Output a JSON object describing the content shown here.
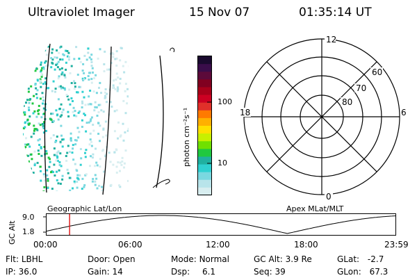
{
  "header": {
    "instrument": "Ultraviolet Imager",
    "date": "15 Nov 07",
    "time": "01:35:14 UT"
  },
  "colorbar": {
    "label": "photon cm⁻²s⁻¹",
    "ticks": [
      "100",
      "10"
    ],
    "colors": [
      "#1a0a2e",
      "#3a0d4a",
      "#5c0a3a",
      "#800020",
      "#a8001a",
      "#cc0022",
      "#e0302a",
      "#ff7a00",
      "#ffb000",
      "#ffe000",
      "#c8f000",
      "#70e000",
      "#20c840",
      "#20b0a0",
      "#30d0d0",
      "#7ad8e0",
      "#b8e4ea",
      "#d8eef0"
    ]
  },
  "polar": {
    "mlt_labels": {
      "top": "12",
      "bottom": "0",
      "left": "18",
      "right": "6"
    },
    "lat_labels": [
      "60",
      "70",
      "80"
    ]
  },
  "timeline": {
    "ylabel": "GC Alt",
    "yticks": [
      "9.0",
      "1.8"
    ],
    "left_title": "Geographic Lat/Lon",
    "right_title": "Apex MLat/MLT",
    "xticks": [
      "00:00",
      "06:00",
      "12:00",
      "18:00",
      "23:59"
    ],
    "current_time_fraction": 0.066
  },
  "footer": {
    "row1": [
      {
        "label": "Flt:",
        "value": "LBHL"
      },
      {
        "label": "Door:",
        "value": "Open"
      },
      {
        "label": "Mode:",
        "value": "Normal"
      },
      {
        "label": "GC Alt:",
        "value": "3.9 Re"
      },
      {
        "label": "GLat:",
        "value": "-2.7"
      }
    ],
    "row2": [
      {
        "label": "IP:",
        "value": "36.0"
      },
      {
        "label": "Gain:",
        "value": "14"
      },
      {
        "label": "Dsp:",
        "value": "6.1"
      },
      {
        "label": "Seq:",
        "value": "39"
      },
      {
        "label": "GLon:",
        "value": "67.3"
      }
    ]
  }
}
